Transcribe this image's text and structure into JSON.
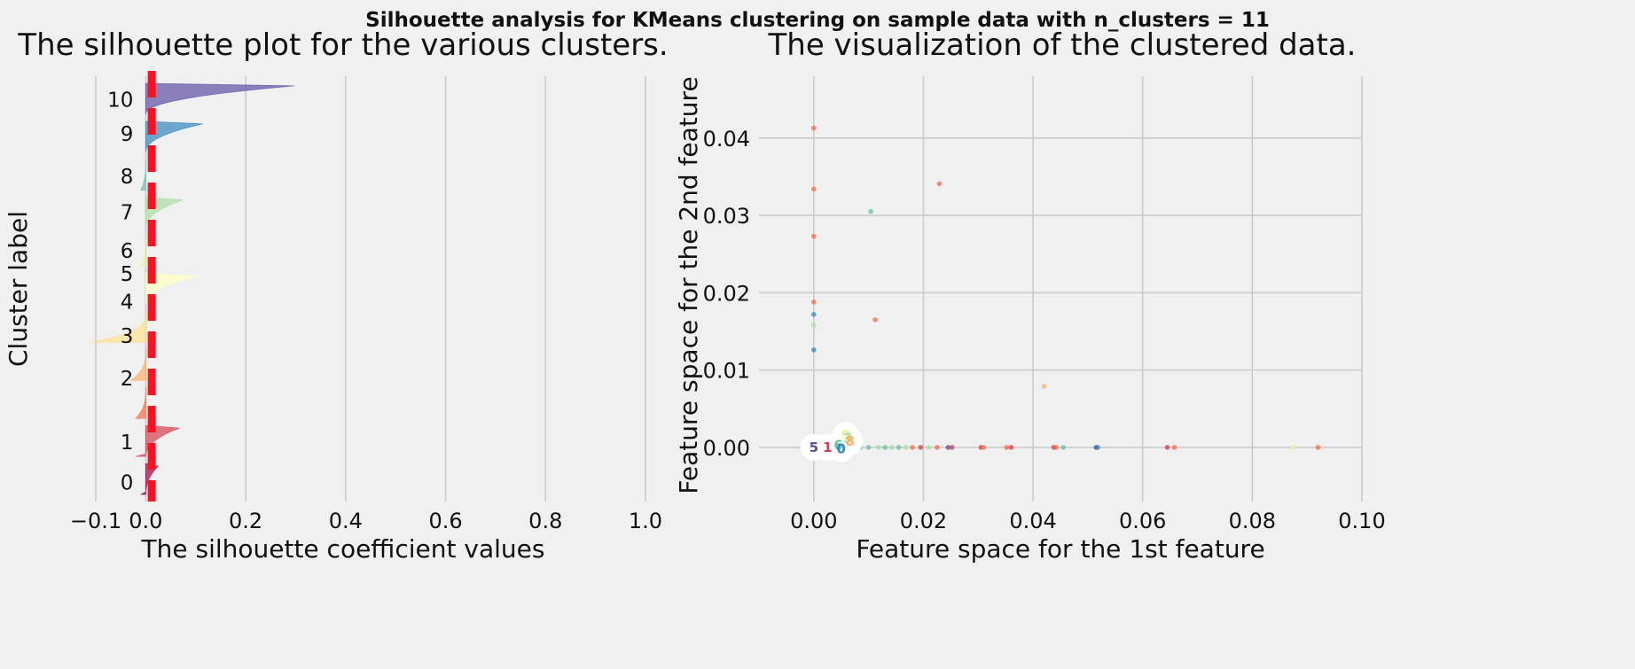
{
  "suptitle": "Silhouette analysis for KMeans clustering on sample data with n_clusters = 11",
  "chart_data": [
    {
      "type": "area",
      "title": "The silhouette plot for the various clusters.",
      "xlabel": "The silhouette coefficient values",
      "ylabel": "Cluster label",
      "xlim": [
        -0.1,
        1.0
      ],
      "xticks": [
        -0.1,
        0.0,
        0.2,
        0.4,
        0.6,
        0.8,
        1.0
      ],
      "xtick_labels": [
        "−0.1",
        "0.0",
        "0.2",
        "0.4",
        "0.6",
        "0.8",
        "1.0"
      ],
      "grid": true,
      "average_silhouette_score": 0.012,
      "clusters": [
        {
          "label": "0",
          "color": "#9e0142",
          "max": 0.025,
          "min": -0.01,
          "label_y": 0.045
        },
        {
          "label": "1",
          "color": "#d53e4f",
          "max": 0.068,
          "min": -0.02,
          "label_y": 0.14
        },
        {
          "label": "2",
          "color": "#f46d43",
          "max": 0.0,
          "min": -0.02,
          "label_y": 0.29
        },
        {
          "label": "3",
          "color": "#fdae61",
          "max": 0.0,
          "min": -0.03,
          "label_y": 0.39
        },
        {
          "label": "4",
          "color": "#fee08b",
          "max": 0.0,
          "min": -0.11,
          "label_y": 0.47
        },
        {
          "label": "5",
          "color": "#ffffbf",
          "max": 0.105,
          "min": 0.0,
          "label_y": 0.535
        },
        {
          "label": "6",
          "color": "#e6f598",
          "max": 0.0,
          "min": -0.01,
          "label_y": 0.59
        },
        {
          "label": "7",
          "color": "#abdda4",
          "max": 0.075,
          "min": 0.0,
          "label_y": 0.68
        },
        {
          "label": "8",
          "color": "#66c2a5",
          "max": 0.0,
          "min": -0.01,
          "label_y": 0.765
        },
        {
          "label": "9",
          "color": "#3288bd",
          "max": 0.115,
          "min": 0.0,
          "label_y": 0.865
        },
        {
          "label": "10",
          "color": "#5e4fa2",
          "max": 0.3,
          "min": 0.0,
          "label_y": 0.945
        }
      ]
    },
    {
      "type": "scatter",
      "title": "The visualization of the clustered data.",
      "xlabel": "Feature space for the 1st feature",
      "ylabel": "Feature space for the 2nd feature",
      "xlim": [
        -0.01,
        0.1
      ],
      "ylim": [
        -0.007,
        0.048
      ],
      "xticks": [
        0.0,
        0.02,
        0.04,
        0.06,
        0.08,
        0.1
      ],
      "xtick_labels": [
        "0.00",
        "0.02",
        "0.04",
        "0.06",
        "0.08",
        "0.10"
      ],
      "yticks": [
        0.0,
        0.01,
        0.02,
        0.03,
        0.04
      ],
      "ytick_labels": [
        "0.00",
        "0.01",
        "0.02",
        "0.03",
        "0.04"
      ],
      "grid": true,
      "points": [
        {
          "x": 0.0,
          "y": 0.0413,
          "color": "#f46d43"
        },
        {
          "x": 0.0,
          "y": 0.0334,
          "color": "#f46d43"
        },
        {
          "x": 0.0,
          "y": 0.0273,
          "color": "#f46d43"
        },
        {
          "x": 0.0,
          "y": 0.0188,
          "color": "#f46d43"
        },
        {
          "x": 0.0,
          "y": 0.0172,
          "color": "#3288bd"
        },
        {
          "x": 0.0,
          "y": 0.0158,
          "color": "#abdda4"
        },
        {
          "x": 0.0,
          "y": 0.0126,
          "color": "#3288bd"
        },
        {
          "x": 0.0229,
          "y": 0.0341,
          "color": "#f46d43"
        },
        {
          "x": 0.0104,
          "y": 0.0305,
          "color": "#66c2a5"
        },
        {
          "x": 0.0112,
          "y": 0.0165,
          "color": "#f46d43"
        },
        {
          "x": 0.042,
          "y": 0.0079,
          "color": "#fdae61"
        },
        {
          "x": 0.0,
          "y": 0.0,
          "color": "#9e0142"
        },
        {
          "x": 0.002,
          "y": 0.0,
          "color": "#d53e4f"
        },
        {
          "x": 0.004,
          "y": 0.0,
          "color": "#5e4fa2"
        },
        {
          "x": 0.0085,
          "y": 0.0,
          "color": "#66c2a5"
        },
        {
          "x": 0.01,
          "y": 0.0,
          "color": "#66c2a5"
        },
        {
          "x": 0.0118,
          "y": 0.0,
          "color": "#abdda4"
        },
        {
          "x": 0.013,
          "y": 0.0,
          "color": "#66c2a5"
        },
        {
          "x": 0.0142,
          "y": 0.0,
          "color": "#abdda4"
        },
        {
          "x": 0.0155,
          "y": 0.0,
          "color": "#66c2a5"
        },
        {
          "x": 0.0168,
          "y": 0.0,
          "color": "#abdda4"
        },
        {
          "x": 0.018,
          "y": 0.0,
          "color": "#f46d43"
        },
        {
          "x": 0.0195,
          "y": 0.0,
          "color": "#d53e4f"
        },
        {
          "x": 0.021,
          "y": 0.0,
          "color": "#abdda4"
        },
        {
          "x": 0.0225,
          "y": 0.0,
          "color": "#f46d43"
        },
        {
          "x": 0.0245,
          "y": 0.0,
          "color": "#5e4fa2"
        },
        {
          "x": 0.0252,
          "y": 0.0,
          "color": "#d53e4f"
        },
        {
          "x": 0.0305,
          "y": 0.0,
          "color": "#d53e4f"
        },
        {
          "x": 0.031,
          "y": 0.0,
          "color": "#f46d43"
        },
        {
          "x": 0.0352,
          "y": 0.0,
          "color": "#f46d43"
        },
        {
          "x": 0.036,
          "y": 0.0,
          "color": "#d53e4f"
        },
        {
          "x": 0.0438,
          "y": 0.0,
          "color": "#d53e4f"
        },
        {
          "x": 0.0442,
          "y": 0.0,
          "color": "#f46d43"
        },
        {
          "x": 0.0455,
          "y": 0.0,
          "color": "#66c2a5"
        },
        {
          "x": 0.0515,
          "y": 0.0,
          "color": "#5e4fa2"
        },
        {
          "x": 0.0518,
          "y": 0.0,
          "color": "#3288bd"
        },
        {
          "x": 0.0645,
          "y": 0.0,
          "color": "#d53e4f"
        },
        {
          "x": 0.0658,
          "y": 0.0,
          "color": "#f46d43"
        },
        {
          "x": 0.0875,
          "y": 0.0,
          "color": "#e6f598"
        },
        {
          "x": 0.092,
          "y": 0.0,
          "color": "#f46d43"
        }
      ],
      "centers": [
        {
          "label": "5",
          "x": 0.0,
          "y": 0.0,
          "color": "#5e4fa2"
        },
        {
          "label": "1",
          "x": 0.0025,
          "y": 0.0,
          "color": "#d53e4f"
        },
        {
          "label": "6",
          "x": 0.0045,
          "y": 0.0003,
          "color": "#66c2a5"
        },
        {
          "label": "0",
          "x": 0.005,
          "y": -0.0002,
          "color": "#3288bd"
        },
        {
          "label": "9",
          "x": 0.0058,
          "y": 0.0016,
          "color": "#e6f598"
        },
        {
          "label": "3",
          "x": 0.0062,
          "y": 0.0012,
          "color": "#abdda4"
        },
        {
          "label": "8",
          "x": 0.0066,
          "y": 0.0008,
          "color": "#fdae61"
        }
      ]
    }
  ]
}
